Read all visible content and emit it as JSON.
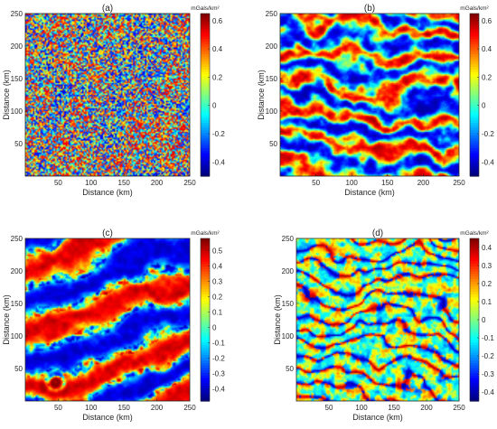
{
  "chart_data": [
    {
      "type": "heatmap",
      "title": "(a)",
      "xlabel": "Distance (km)",
      "ylabel": "Distance (km)",
      "xlim": [
        0,
        250
      ],
      "ylim": [
        0,
        250
      ],
      "xticks": [
        50,
        100,
        150,
        200,
        250
      ],
      "yticks": [
        50,
        100,
        150,
        200,
        250
      ],
      "colorbar": {
        "label": "mGals/km²",
        "clim": [
          -0.5,
          0.65
        ],
        "ticks": [
          -0.4,
          -0.2,
          0,
          0.2,
          0.4,
          0.6
        ]
      },
      "pattern": "fine-texture"
    },
    {
      "type": "heatmap",
      "title": "(b)",
      "xlabel": "Distance (km)",
      "ylabel": "Distance (km)",
      "xlim": [
        0,
        250
      ],
      "ylim": [
        0,
        250
      ],
      "xticks": [
        50,
        100,
        150,
        200,
        250
      ],
      "yticks": [
        50,
        100,
        150,
        200,
        250
      ],
      "colorbar": {
        "label": "mGals/km²",
        "clim": [
          -0.5,
          0.65
        ],
        "ticks": [
          -0.4,
          -0.2,
          0,
          0.2,
          0.4,
          0.6
        ]
      },
      "pattern": "banded"
    },
    {
      "type": "heatmap",
      "title": "(c)",
      "xlabel": "Distance (km)",
      "ylabel": "Distance (km)",
      "xlim": [
        0,
        250
      ],
      "ylim": [
        0,
        250
      ],
      "xticks": [
        50,
        100,
        150,
        200,
        250
      ],
      "yticks": [
        50,
        100,
        150,
        200,
        250
      ],
      "colorbar": {
        "label": "mGals/km²",
        "clim": [
          -0.48,
          0.58
        ],
        "ticks": [
          -0.4,
          -0.3,
          -0.2,
          -0.1,
          0,
          0.1,
          0.2,
          0.3,
          0.4,
          0.5
        ]
      },
      "pattern": "smooth-regional"
    },
    {
      "type": "heatmap",
      "title": "(d)",
      "xlabel": "Distance (km)",
      "ylabel": "Distance (km)",
      "xlim": [
        0,
        250
      ],
      "ylim": [
        0,
        250
      ],
      "xticks": [
        50,
        100,
        150,
        200,
        250
      ],
      "yticks": [
        50,
        100,
        150,
        200,
        250
      ],
      "colorbar": {
        "label": "mGals/km²",
        "clim": [
          -0.45,
          0.45
        ],
        "ticks": [
          -0.4,
          -0.3,
          -0.2,
          -0.1,
          0,
          0.1,
          0.2,
          0.3,
          0.4
        ]
      },
      "pattern": "edge-lineaments"
    }
  ]
}
